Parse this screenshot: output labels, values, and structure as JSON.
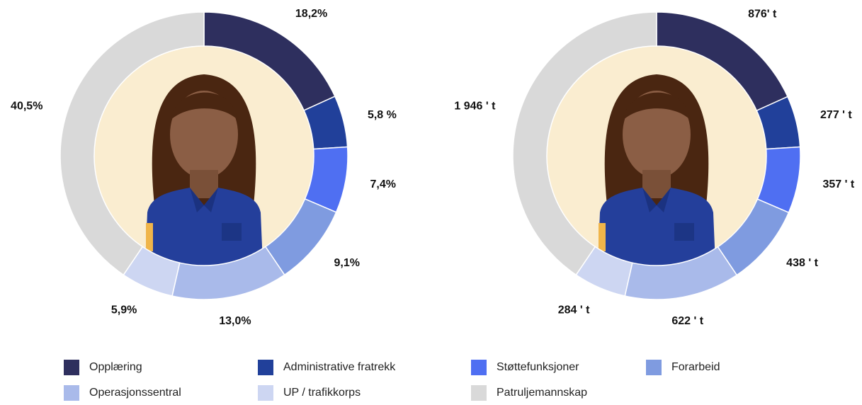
{
  "legend": {
    "entries": [
      {
        "name": "Opplæring",
        "color": "#2e2f5e"
      },
      {
        "name": "Administrative fratrekk",
        "color": "#21409a"
      },
      {
        "name": "Støttefunksjoner",
        "color": "#4f6ff2"
      },
      {
        "name": "Forarbeid",
        "color": "#7f9be0"
      },
      {
        "name": "Operasjonssentral",
        "color": "#a9baea"
      },
      {
        "name": "UP / trafikkorps",
        "color": "#cdd6f2"
      },
      {
        "name": "Patruljemannskap",
        "color": "#d9d9d9"
      }
    ]
  },
  "chart_data": [
    {
      "type": "pie",
      "values": [
        18.2,
        5.8,
        7.4,
        9.1,
        13.0,
        5.9,
        40.5
      ],
      "value_labels": [
        "18,2%",
        "5,8 %",
        "7,4%",
        "9,1%",
        "13,0%",
        "5,9%",
        "40,5%"
      ]
    },
    {
      "type": "pie",
      "values": [
        876,
        277,
        357,
        438,
        622,
        284,
        1946
      ],
      "value_labels": [
        "876' t",
        "277 ' t",
        "357 ' t",
        "438 ' t",
        "622 ' t",
        "284 ' t",
        "1 946 ' t"
      ]
    }
  ]
}
